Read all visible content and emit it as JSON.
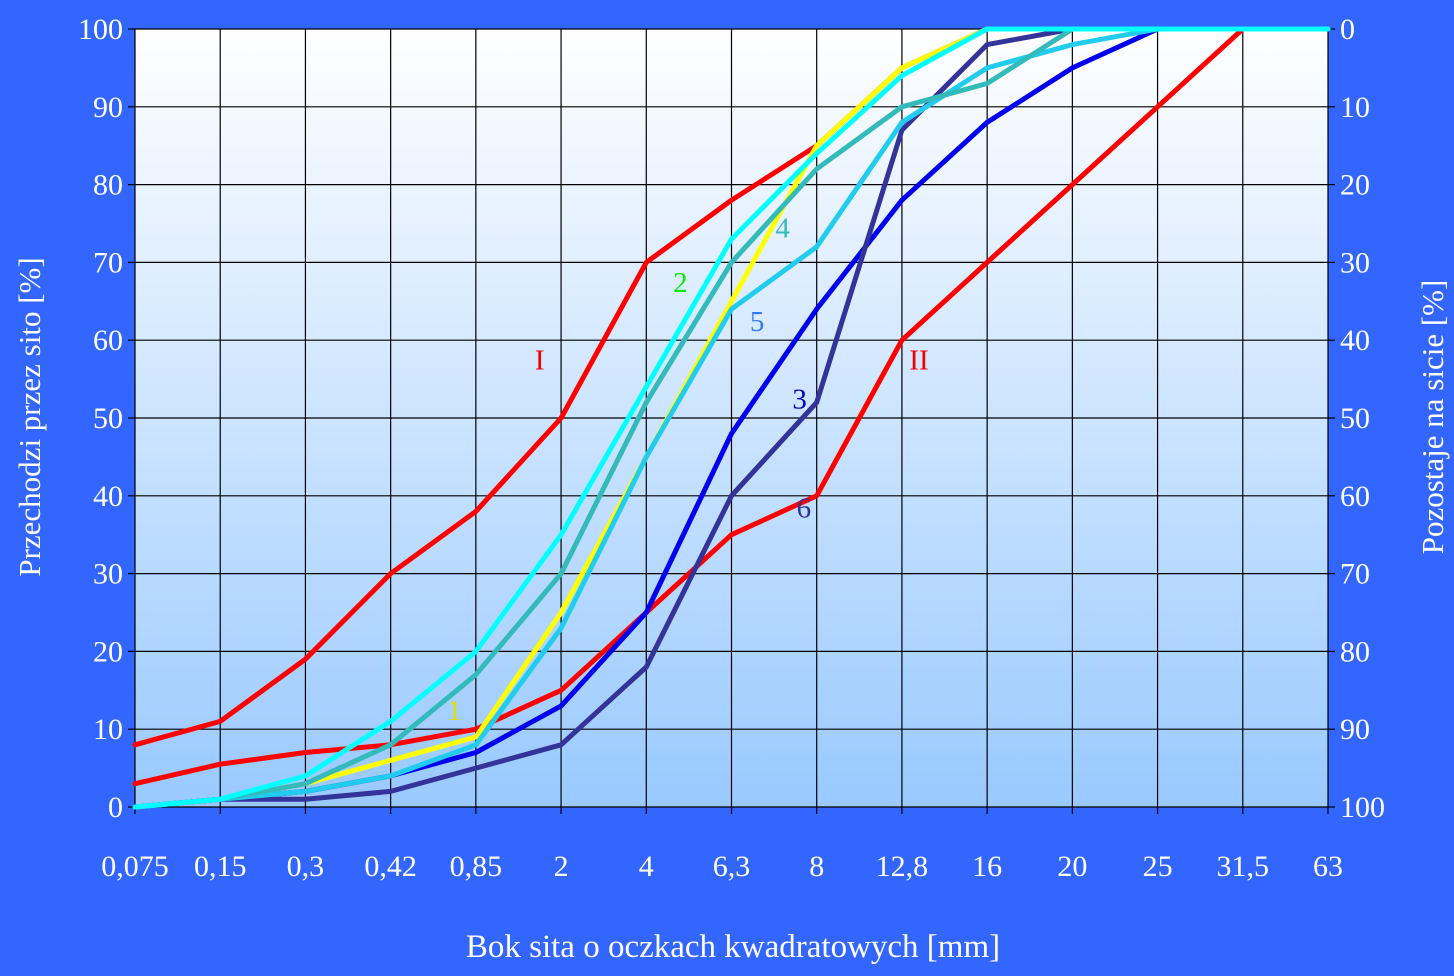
{
  "chart_data": {
    "type": "line",
    "title": "",
    "xlabel": "Bok sita o oczkach kwadratowych [mm]",
    "ylabel": "Przechodzi przez sito [%]",
    "y2label": "Pozostaje na sicie [%]",
    "categories": [
      "0,075",
      "0,15",
      "0,3",
      "0,42",
      "0,85",
      "2",
      "4",
      "6,3",
      "8",
      "12,8",
      "16",
      "20",
      "25",
      "31,5",
      "63"
    ],
    "ylim": [
      0,
      100
    ],
    "y_ticks": [
      "0",
      "10",
      "20",
      "30",
      "40",
      "50",
      "60",
      "70",
      "80",
      "90",
      "100"
    ],
    "y2_ticks": [
      "100",
      "90",
      "80",
      "70",
      "60",
      "50",
      "40",
      "30",
      "20",
      "10",
      "0"
    ],
    "grid": true,
    "background_gradient": [
      "#ffffff",
      "#99c9ff"
    ],
    "series": [
      {
        "name": "I",
        "color": "#ff0000",
        "label_at": [
          4.75,
          57.5
        ],
        "values": [
          8,
          11,
          19,
          30,
          38,
          50,
          70,
          78,
          85,
          95,
          100,
          100,
          100,
          100,
          100
        ]
      },
      {
        "name": "II",
        "color": "#ff0000",
        "label_at": [
          9.2,
          57.5
        ],
        "values": [
          3,
          5.5,
          7,
          8,
          10,
          15,
          25,
          35,
          40,
          60,
          70,
          80,
          90,
          100,
          100
        ]
      },
      {
        "name": "1",
        "color": "#ffff00",
        "label_at": [
          3.75,
          12.5
        ],
        "values": [
          0,
          1,
          3,
          6,
          9,
          25,
          45,
          65,
          85,
          95,
          100,
          100,
          100,
          100,
          100
        ]
      },
      {
        "name": "3",
        "color": "#0000ee",
        "label_at": [
          7.8,
          52.5
        ],
        "values": [
          0,
          1,
          2,
          4,
          7,
          13,
          25,
          48,
          64,
          78,
          88,
          95,
          100,
          100,
          100
        ]
      },
      {
        "name": "6",
        "color": "#333399",
        "label_at": [
          7.85,
          38.5
        ],
        "values": [
          0,
          1,
          1,
          2,
          5,
          8,
          18,
          40,
          52,
          87,
          98,
          100,
          100,
          100,
          100
        ]
      },
      {
        "name": "5",
        "color": "#22ccee",
        "label_at": [
          7.3,
          62.5
        ],
        "values": [
          0,
          1,
          2,
          4,
          8,
          23,
          45,
          64,
          72,
          88,
          95,
          98,
          100,
          100,
          100
        ]
      },
      {
        "name": "4",
        "color": "#33bbbb",
        "label_at": [
          7.6,
          74.5
        ],
        "values": [
          0,
          1,
          3,
          8,
          17,
          30,
          52,
          70,
          82,
          90,
          93,
          100,
          100,
          100,
          100
        ]
      },
      {
        "name": "2",
        "color": "#00ffff",
        "label_at": [
          6.4,
          67.5
        ],
        "values": [
          0,
          1,
          4,
          11,
          20,
          35,
          54,
          73,
          84,
          94,
          100,
          100,
          100,
          100,
          100
        ]
      }
    ],
    "series_label_colors": {
      "I": "#ee0000",
      "II": "#ee0000",
      "1": "#dddd00",
      "2": "#00ee00",
      "3": "#0000cc",
      "4": "#33bbbb",
      "5": "#3377ff",
      "6": "#333399"
    }
  }
}
